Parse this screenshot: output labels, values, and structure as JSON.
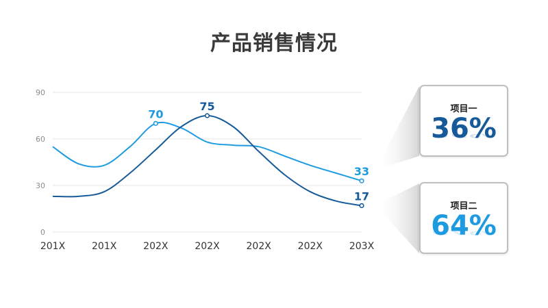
{
  "title": "产品销售情况",
  "chart_data": {
    "type": "line",
    "categories": [
      "201X",
      "201X",
      "202X",
      "202X",
      "202X",
      "202X",
      "203X"
    ],
    "y_ticks": [
      0,
      30,
      60,
      90
    ],
    "ylim": [
      0,
      90
    ],
    "grid": true,
    "series": [
      {
        "color": "#1e9be0",
        "points": [
          [
            0,
            55
          ],
          [
            0.5,
            44
          ],
          [
            1,
            43
          ],
          [
            1.5,
            55
          ],
          [
            2,
            70
          ],
          [
            2.5,
            67
          ],
          [
            3,
            58
          ],
          [
            3.5,
            56
          ],
          [
            4,
            55
          ],
          [
            4.5,
            49
          ],
          [
            5,
            43
          ],
          [
            5.5,
            38
          ],
          [
            6,
            33
          ]
        ],
        "labels": [
          {
            "x": 2,
            "y": 70,
            "text": "70"
          },
          {
            "x": 6,
            "y": 33,
            "text": "33"
          }
        ]
      },
      {
        "color": "#175a9a",
        "points": [
          [
            0,
            23
          ],
          [
            0.5,
            23
          ],
          [
            1,
            26
          ],
          [
            1.5,
            38
          ],
          [
            2,
            53
          ],
          [
            2.5,
            68
          ],
          [
            3,
            75
          ],
          [
            3.5,
            68
          ],
          [
            4,
            52
          ],
          [
            4.5,
            37
          ],
          [
            5,
            26
          ],
          [
            5.5,
            20
          ],
          [
            6,
            17
          ]
        ],
        "labels": [
          {
            "x": 3,
            "y": 75,
            "text": "75"
          },
          {
            "x": 6,
            "y": 17,
            "text": "17"
          }
        ]
      }
    ]
  },
  "cards": [
    {
      "label": "项目一",
      "value": "36%",
      "color": "#175a9a"
    },
    {
      "label": "项目二",
      "value": "64%",
      "color": "#1e9be0"
    }
  ]
}
